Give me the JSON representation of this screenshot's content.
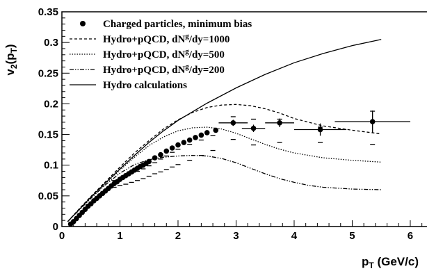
{
  "chart_data": {
    "type": "line",
    "xlabel": {
      "main": "p",
      "sub": "T",
      "unit": " (GeV/c)"
    },
    "ylabel": {
      "main": "v",
      "sub": "2",
      "rest": "(p",
      "sub2": "T",
      "close": ")"
    },
    "xlim": [
      0,
      6.3
    ],
    "ylim": [
      0,
      0.35
    ],
    "x_ticks": [
      {
        "value": 0,
        "label": "0"
      },
      {
        "value": 1,
        "label": "1"
      },
      {
        "value": 2,
        "label": "2"
      },
      {
        "value": 3,
        "label": "3"
      },
      {
        "value": 4,
        "label": "4"
      },
      {
        "value": 5,
        "label": "5"
      },
      {
        "value": 6,
        "label": "6"
      }
    ],
    "y_ticks": [
      {
        "value": 0,
        "label": "0"
      },
      {
        "value": 0.05,
        "label": "0.05"
      },
      {
        "value": 0.1,
        "label": "0.1"
      },
      {
        "value": 0.15,
        "label": "0.15"
      },
      {
        "value": 0.2,
        "label": "0.2"
      },
      {
        "value": 0.25,
        "label": "0.25"
      },
      {
        "value": 0.3,
        "label": "0.3"
      },
      {
        "value": 0.35,
        "label": "0.35"
      }
    ],
    "grid": false,
    "legend_position": "top-left",
    "legend": [
      {
        "kind": "marker",
        "text": "Charged particles, minimum bias"
      },
      {
        "kind": "line",
        "dash": "4,3",
        "parts": [
          "Hydro+pQCD, dN",
          "g",
          "/dy=1000"
        ]
      },
      {
        "kind": "line",
        "dash": "1.5,2",
        "parts": [
          "Hydro+pQCD, dN",
          "g",
          "/dy=500"
        ]
      },
      {
        "kind": "line",
        "dash": "6,2,1.5,2,1.5,2",
        "parts": [
          "Hydro+pQCD, dN",
          "g",
          "/dy=200"
        ]
      },
      {
        "kind": "line",
        "dash": "",
        "parts": [
          "Hydro calculations"
        ]
      }
    ],
    "series": [
      {
        "kind": "line",
        "dash": "",
        "x": [
          0.1,
          0.3,
          0.5,
          0.75,
          1.0,
          1.25,
          1.5,
          1.75,
          2.0,
          2.5,
          3.0,
          3.5,
          4.0,
          4.5,
          5.0,
          5.5
        ],
        "y": [
          0.008,
          0.028,
          0.048,
          0.071,
          0.094,
          0.116,
          0.137,
          0.156,
          0.173,
          0.201,
          0.226,
          0.248,
          0.267,
          0.282,
          0.295,
          0.305
        ]
      },
      {
        "kind": "line",
        "dash": "4,3",
        "x": [
          0.1,
          0.3,
          0.5,
          0.75,
          1.0,
          1.25,
          1.5,
          1.75,
          2.0,
          2.25,
          2.5,
          2.75,
          3.0,
          3.25,
          3.5,
          3.75,
          4.0,
          4.5,
          5.0,
          5.5
        ],
        "y": [
          0.008,
          0.029,
          0.049,
          0.073,
          0.097,
          0.12,
          0.14,
          0.159,
          0.174,
          0.186,
          0.194,
          0.198,
          0.199,
          0.197,
          0.192,
          0.185,
          0.176,
          0.164,
          0.157,
          0.151
        ]
      },
      {
        "kind": "line",
        "dash": "1.5,2",
        "x": [
          0.1,
          0.3,
          0.5,
          0.75,
          1.0,
          1.25,
          1.5,
          1.75,
          2.0,
          2.25,
          2.5,
          2.75,
          3.0,
          3.25,
          3.5,
          3.75,
          4.0,
          4.5,
          5.0,
          5.5
        ],
        "y": [
          0.008,
          0.028,
          0.047,
          0.07,
          0.092,
          0.113,
          0.132,
          0.146,
          0.156,
          0.161,
          0.162,
          0.159,
          0.152,
          0.143,
          0.134,
          0.126,
          0.12,
          0.112,
          0.108,
          0.105
        ]
      },
      {
        "kind": "line",
        "dash": "6,2,1.5,2,1.5,2",
        "x": [
          0.1,
          0.3,
          0.5,
          0.75,
          1.0,
          1.25,
          1.5,
          1.75,
          2.0,
          2.25,
          2.5,
          2.75,
          3.0,
          3.25,
          3.5,
          3.75,
          4.0,
          4.25,
          4.5,
          5.0,
          5.5
        ],
        "y": [
          0.008,
          0.027,
          0.046,
          0.068,
          0.087,
          0.101,
          0.109,
          0.113,
          0.115,
          0.116,
          0.115,
          0.111,
          0.104,
          0.095,
          0.086,
          0.078,
          0.072,
          0.067,
          0.064,
          0.061,
          0.06
        ]
      },
      {
        "kind": "points",
        "x": [
          0.15,
          0.2,
          0.25,
          0.3,
          0.35,
          0.4,
          0.45,
          0.5,
          0.55,
          0.6,
          0.65,
          0.7,
          0.75,
          0.8,
          0.85,
          0.9,
          0.95,
          1.0,
          1.05,
          1.1,
          1.15,
          1.2,
          1.25,
          1.3,
          1.35,
          1.4,
          1.45,
          1.5,
          1.6,
          1.7,
          1.8,
          1.9,
          2.0,
          2.1,
          2.2,
          2.3,
          2.4,
          2.5,
          2.65,
          2.95,
          3.3,
          3.75,
          4.45,
          5.35
        ],
        "y": [
          0.004,
          0.008,
          0.013,
          0.018,
          0.023,
          0.028,
          0.033,
          0.037,
          0.042,
          0.046,
          0.05,
          0.054,
          0.058,
          0.062,
          0.066,
          0.07,
          0.073,
          0.077,
          0.08,
          0.083,
          0.086,
          0.089,
          0.092,
          0.095,
          0.098,
          0.1,
          0.103,
          0.106,
          0.112,
          0.117,
          0.123,
          0.128,
          0.133,
          0.137,
          0.141,
          0.145,
          0.149,
          0.153,
          0.157,
          0.169,
          0.16,
          0.169,
          0.158,
          0.171
        ],
        "xerr": [
          0,
          0,
          0,
          0,
          0,
          0,
          0,
          0,
          0,
          0,
          0,
          0,
          0,
          0,
          0,
          0,
          0,
          0,
          0,
          0,
          0,
          0,
          0,
          0,
          0,
          0,
          0,
          0,
          0,
          0,
          0,
          0,
          0,
          0,
          0,
          0,
          0,
          0,
          0,
          0.25,
          0.2,
          0.25,
          0.45,
          0.65
        ],
        "yerr": [
          0,
          0,
          0,
          0,
          0,
          0,
          0,
          0,
          0,
          0,
          0,
          0,
          0,
          0,
          0,
          0,
          0,
          0,
          0,
          0,
          0,
          0,
          0,
          0,
          0,
          0,
          0,
          0,
          0,
          0,
          0,
          0,
          0,
          0,
          0,
          0,
          0,
          0,
          0,
          0.005,
          0.006,
          0.007,
          0.01,
          0.018
        ]
      }
    ],
    "systematic_bands": {
      "x": [
        0.9,
        1.0,
        1.1,
        1.2,
        1.3,
        1.4,
        1.5,
        1.6,
        1.7,
        1.8,
        1.9,
        2.0,
        2.2,
        2.4,
        2.6,
        2.95,
        3.3,
        3.75,
        4.45,
        5.35
      ],
      "upper": [
        0.075,
        0.079,
        0.083,
        0.087,
        0.09,
        0.094,
        0.099,
        0.104,
        0.11,
        0.115,
        0.121,
        0.126,
        0.134,
        0.141,
        0.148,
        0.179,
        0.175,
        0.175,
        0.162,
        0.188
      ],
      "lower": [
        0.064,
        0.067,
        0.069,
        0.072,
        0.075,
        0.078,
        0.082,
        0.086,
        0.089,
        0.093,
        0.097,
        0.101,
        0.108,
        0.116,
        0.124,
        0.142,
        0.133,
        0.137,
        0.137,
        0.134
      ]
    }
  }
}
